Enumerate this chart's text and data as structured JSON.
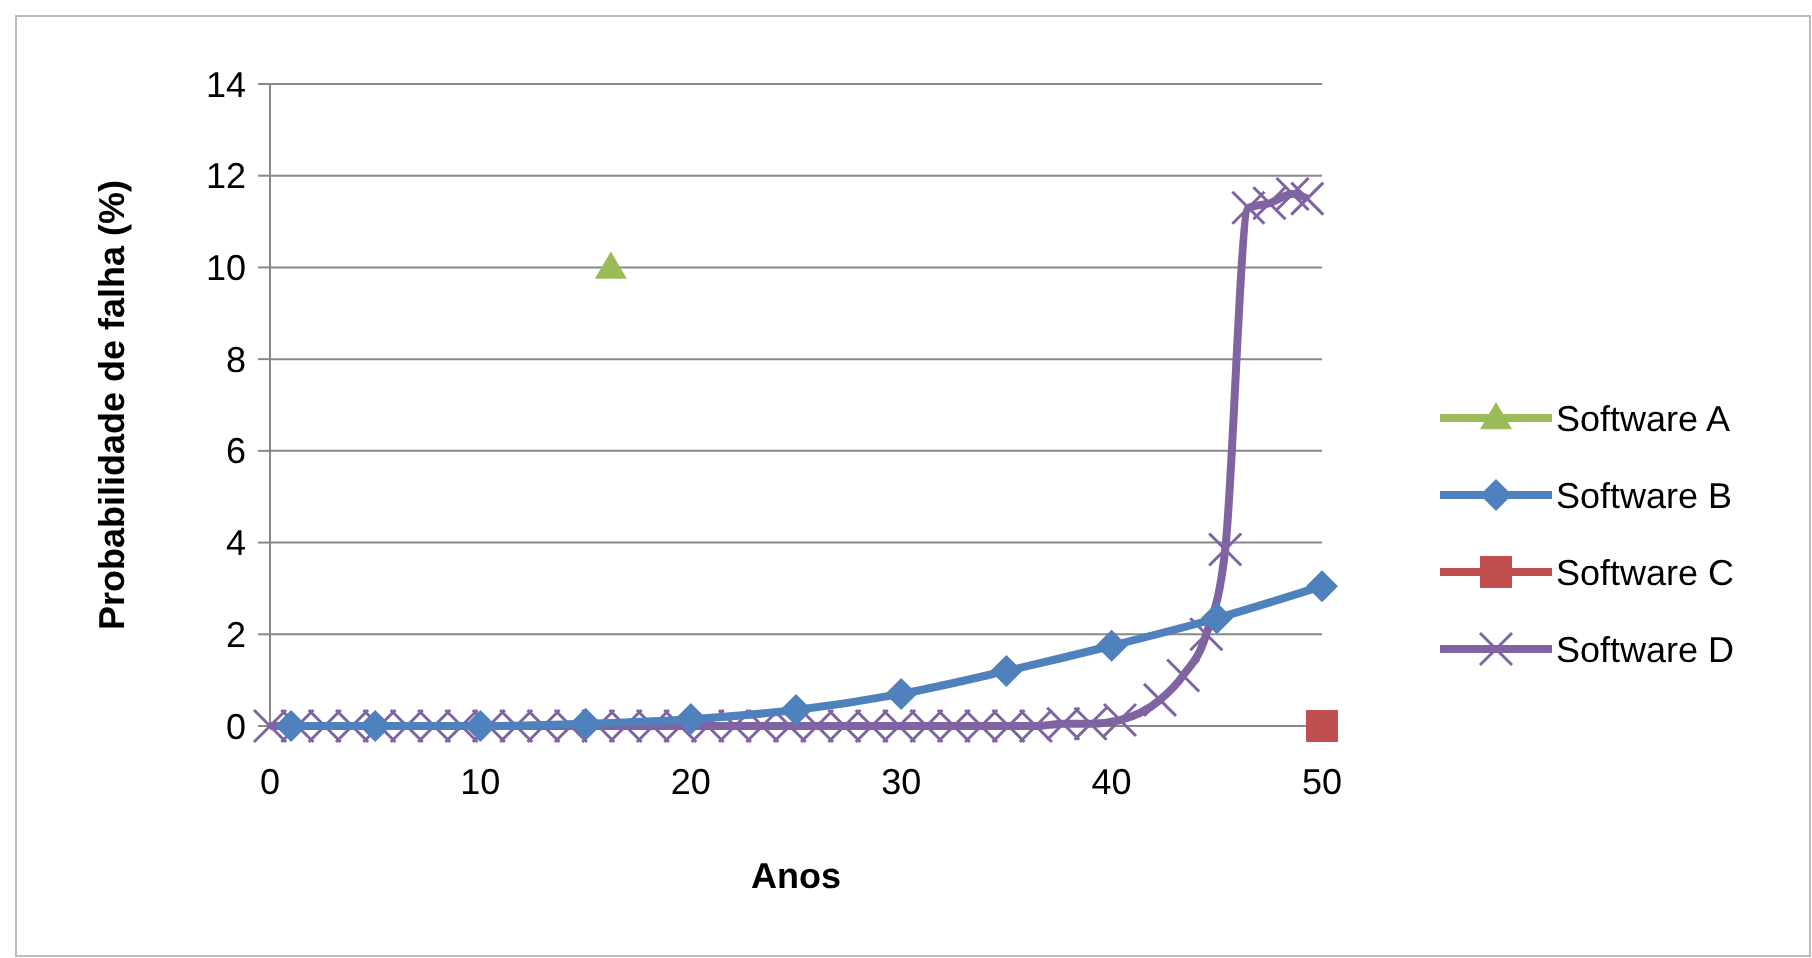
{
  "chart_data": {
    "type": "line",
    "xlabel": "Anos",
    "ylabel": "Probabilidade de falha (%)",
    "xlim": [
      0,
      50
    ],
    "xticks": [
      0,
      10,
      20,
      30,
      40,
      50
    ],
    "ylim": [
      0,
      14
    ],
    "yticks": [
      0,
      2,
      4,
      6,
      8,
      10,
      12,
      14
    ],
    "grid": "y",
    "legend": "right",
    "series": [
      {
        "name": "Software A",
        "color": "#9bbb59",
        "marker": "triangle",
        "x": [
          16.2
        ],
        "values": [
          10
        ]
      },
      {
        "name": "Software B",
        "color": "#4f81bd",
        "marker": "diamond",
        "x": [
          1,
          5,
          10,
          15,
          20,
          25,
          30,
          35,
          40,
          45,
          50
        ],
        "values": [
          0,
          0,
          0,
          0.05,
          0.15,
          0.35,
          0.7,
          1.2,
          1.75,
          2.35,
          3.05
        ]
      },
      {
        "name": "Software C",
        "color": "#c0504d",
        "marker": "square",
        "x": [
          50
        ],
        "values": [
          0
        ]
      },
      {
        "name": "Software D",
        "color": "#8064a2",
        "marker": "cross",
        "x": [
          0,
          1.3,
          2.6,
          3.9,
          5.2,
          6.5,
          7.8,
          9.1,
          10.4,
          11.7,
          13,
          14.3,
          15.6,
          16.9,
          18.2,
          19.5,
          20.8,
          22.1,
          23.4,
          24.7,
          26,
          27.3,
          28.6,
          29.9,
          31.2,
          32.5,
          33.8,
          35.1,
          36.4,
          37.7,
          39,
          40.4,
          42.3,
          43.4,
          44.5,
          45.4,
          46.5,
          47.5,
          48.6,
          49.3
        ],
        "values": [
          0,
          0,
          0,
          0,
          0,
          0,
          0,
          0,
          0,
          0,
          0,
          0,
          0,
          0,
          0,
          0,
          0,
          0,
          0,
          0,
          0,
          0,
          0,
          0,
          0,
          0,
          0,
          0,
          0,
          0.05,
          0.05,
          0.13,
          0.57,
          1.1,
          2,
          3.85,
          11.3,
          11.4,
          11.6,
          11.5
        ]
      }
    ]
  }
}
